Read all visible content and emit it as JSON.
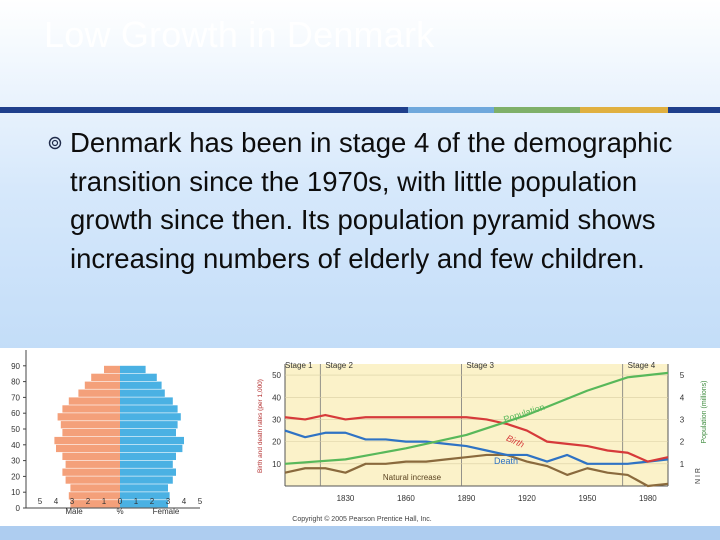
{
  "slide": {
    "title": "Low Growth in Denmark",
    "bullet_icon": "ring-bullet-icon",
    "bullet_text": "Denmark has been in stage 4 of the demographic transition since the 1970s, with little population growth since then. Its population pyramid shows increasing numbers of elderly and few children.",
    "accent_colors": [
      "#1f3f8c",
      "#6fa8dc",
      "#7fb069",
      "#e0b040",
      "#1f3f8c"
    ]
  },
  "pyramid": {
    "age_ticks": [
      "90",
      "80",
      "70",
      "60",
      "50",
      "40",
      "30",
      "20",
      "10",
      "0"
    ],
    "x_ticks": [
      "5",
      "4",
      "3",
      "2",
      "1",
      "0",
      "1",
      "2",
      "3",
      "4",
      "5"
    ],
    "male_label": "Male",
    "percent_label": "%",
    "female_label": "Female",
    "male_color": "#f4a07a",
    "female_color": "#4ab1e3",
    "cohorts_age": [
      0,
      5,
      10,
      15,
      20,
      25,
      30,
      35,
      40,
      45,
      50,
      55,
      60,
      65,
      70,
      75,
      80,
      85
    ],
    "male_percent": [
      3.1,
      3.2,
      3.1,
      3.4,
      3.6,
      3.4,
      3.6,
      4.0,
      4.1,
      3.6,
      3.7,
      3.9,
      3.6,
      3.2,
      2.6,
      2.2,
      1.8,
      1.0
    ],
    "female_percent": [
      3.0,
      3.1,
      3.0,
      3.3,
      3.5,
      3.3,
      3.5,
      3.9,
      4.0,
      3.5,
      3.6,
      3.8,
      3.6,
      3.3,
      2.8,
      2.6,
      2.3,
      1.6
    ]
  },
  "transition": {
    "stage_labels": [
      "Stage 1",
      "Stage 2",
      "Stage 3",
      "Stage 4"
    ],
    "y_left_label": "Birth and death rates (per 1,000)",
    "y_left_ticks": [
      "50",
      "40",
      "30",
      "20",
      "10"
    ],
    "y_right_label": "Population (millions)",
    "y_right_ticks": [
      "5",
      "4",
      "3",
      "2",
      "1"
    ],
    "nir_label": "N I R",
    "x_ticks": [
      "1830",
      "1860",
      "1890",
      "1920",
      "1950",
      "1980"
    ],
    "population_label": "Population",
    "birth_label": "Birth",
    "death_label": "Death",
    "natural_increase_label": "Natural increase",
    "copyright": "Copyright © 2005 Pearson Prentice Hall, Inc.",
    "colors": {
      "population": "#58b85a",
      "birth": "#d63a3a",
      "death": "#2f73c4",
      "natural_increase": "#8a6a3d",
      "background": "#fbf2c9"
    },
    "population_series": {
      "x": [
        1800,
        1830,
        1860,
        1890,
        1920,
        1950,
        1970,
        1990
      ],
      "y": [
        1.0,
        1.2,
        1.7,
        2.3,
        3.2,
        4.3,
        4.9,
        5.1
      ]
    },
    "birth_series": {
      "x": [
        1800,
        1810,
        1820,
        1830,
        1840,
        1850,
        1860,
        1870,
        1880,
        1890,
        1900,
        1910,
        1920,
        1930,
        1940,
        1950,
        1960,
        1970,
        1980,
        1990
      ],
      "y": [
        31,
        30,
        32,
        30,
        31,
        31,
        31,
        31,
        31,
        31,
        30,
        28,
        25,
        20,
        19,
        18,
        16,
        15,
        11,
        13
      ]
    },
    "death_series": {
      "x": [
        1800,
        1810,
        1820,
        1830,
        1840,
        1850,
        1860,
        1870,
        1880,
        1890,
        1900,
        1910,
        1920,
        1930,
        1940,
        1950,
        1960,
        1970,
        1980,
        1990
      ],
      "y": [
        25,
        22,
        24,
        24,
        21,
        21,
        20,
        20,
        19,
        18,
        16,
        14,
        14,
        11,
        14,
        10,
        10,
        10,
        11,
        12
      ]
    },
    "natural_increase_series": {
      "x": [
        1800,
        1810,
        1820,
        1830,
        1840,
        1850,
        1860,
        1870,
        1880,
        1890,
        1900,
        1910,
        1920,
        1930,
        1940,
        1950,
        1960,
        1970,
        1980,
        1990
      ],
      "y": [
        6,
        8,
        8,
        6,
        10,
        10,
        11,
        11,
        12,
        13,
        14,
        14,
        11,
        9,
        5,
        8,
        6,
        5,
        0,
        1
      ]
    }
  }
}
